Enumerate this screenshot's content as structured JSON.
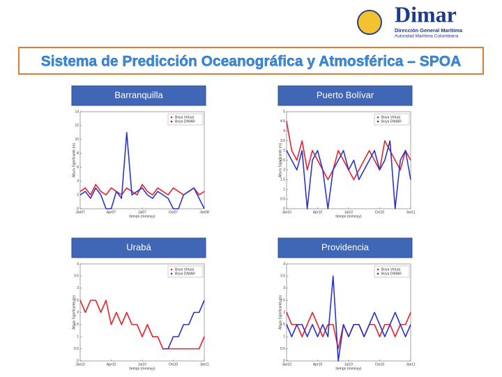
{
  "header": {
    "brand": "Dimar",
    "subtitle1": "Dirección General Marítima",
    "subtitle2": "Autoridad Marítima Colombiana"
  },
  "title": "Sistema de Predicción Oceanográfica y Atmosférica – SPOA",
  "chart_data": [
    {
      "type": "line",
      "title": "Barranquilla",
      "xlabel": "tiempo (mmmyy)",
      "ylabel": "Altura Significante (m)",
      "legend": "upper right",
      "x": [
        0,
        0.5,
        1,
        1.5,
        2,
        2.5,
        3,
        3.5,
        4,
        4.5,
        5,
        5.5,
        6,
        6.5,
        7,
        7.5,
        8,
        8.5,
        9,
        9.5,
        10,
        10.5,
        11,
        11.5,
        12
      ],
      "xlim": [
        0,
        12
      ],
      "xticks": [
        {
          "value": 0,
          "label": "Jan07"
        },
        {
          "value": 3,
          "label": "Apr07"
        },
        {
          "value": 6,
          "label": "Jul07"
        },
        {
          "value": 9,
          "label": "Oct07"
        },
        {
          "value": 12,
          "label": "Jan08"
        }
      ],
      "ylim": [
        0,
        14
      ],
      "yticks": [
        0,
        2,
        4,
        6,
        8,
        10,
        12,
        14
      ],
      "series": [
        {
          "name": "Boya Virtual",
          "color": "#e8212a",
          "values": [
            2.5,
            3,
            2,
            3.5,
            2.5,
            2,
            3,
            2.5,
            2,
            3,
            2.5,
            2,
            3.5,
            2.5,
            2,
            3,
            2.5,
            2,
            3,
            2.5,
            2,
            2.5,
            3,
            2,
            2.5
          ]
        },
        {
          "name": "Boya DIMAR",
          "color": "#2a34c8",
          "values": [
            2,
            2.5,
            1.5,
            3,
            2,
            0,
            0,
            2.5,
            1.5,
            11,
            2,
            2.5,
            3,
            2,
            1.5,
            2.5,
            2,
            1.5,
            0,
            0,
            2,
            2.5,
            3,
            1.5,
            0
          ]
        }
      ]
    },
    {
      "type": "line",
      "title": "Puerto Bolívar",
      "xlabel": "tiempo (mmmyy)",
      "ylabel": "Altura Significante (m)",
      "legend": "upper right",
      "x": [
        0,
        0.5,
        1,
        1.5,
        2,
        2.5,
        3,
        3.5,
        4,
        4.5,
        5,
        5.5,
        6,
        6.5,
        7,
        7.5,
        8,
        8.5,
        9,
        9.5,
        10,
        10.5,
        11,
        11.5,
        12
      ],
      "xlim": [
        0,
        12
      ],
      "xticks": [
        {
          "value": 0,
          "label": "Jan10"
        },
        {
          "value": 3,
          "label": "Apr10"
        },
        {
          "value": 6,
          "label": "Jul10"
        },
        {
          "value": 9,
          "label": "Oct10"
        },
        {
          "value": 12,
          "label": "Jan11"
        }
      ],
      "ylim": [
        0,
        5
      ],
      "yticks": [
        0,
        0.5,
        1,
        1.5,
        2,
        2.5,
        3,
        3.5,
        4,
        4.5,
        5
      ],
      "series": [
        {
          "name": "Boya Virtual",
          "color": "#e8212a",
          "values": [
            4.5,
            3,
            2.5,
            3.5,
            2,
            3,
            2.5,
            2,
            1.5,
            2,
            3,
            2.5,
            2,
            1.5,
            2,
            2.5,
            3,
            2.5,
            2,
            3.5,
            3,
            2.5,
            2,
            3,
            2.5
          ]
        },
        {
          "name": "Boya DIMAR",
          "color": "#2a34c8",
          "values": [
            3,
            2.5,
            2,
            3,
            0,
            2.5,
            3,
            2,
            0,
            2,
            2.5,
            3,
            2,
            2.5,
            1.5,
            2,
            2.5,
            3,
            2,
            2.5,
            3.5,
            0,
            2.5,
            3,
            1.5
          ]
        }
      ]
    },
    {
      "type": "line",
      "title": "Urabá",
      "xlabel": "tiempo (mmmyy)",
      "ylabel": "Altura Significante (m)",
      "legend": "upper right",
      "x": [
        0,
        0.5,
        1,
        1.5,
        2,
        2.5,
        3,
        3.5,
        4,
        4.5,
        5,
        5.5,
        6,
        6.5,
        7,
        7.5,
        8,
        8.5,
        9,
        9.5,
        10,
        10.5,
        11,
        11.5,
        12
      ],
      "xlim": [
        0,
        12
      ],
      "xticks": [
        {
          "value": 0,
          "label": "Jan10"
        },
        {
          "value": 3,
          "label": "Apr10"
        },
        {
          "value": 6,
          "label": "Jul10"
        },
        {
          "value": 9,
          "label": "Oct10"
        },
        {
          "value": 12,
          "label": "Jan11"
        }
      ],
      "ylim": [
        0,
        4
      ],
      "yticks": [
        0,
        0.5,
        1,
        1.5,
        2,
        2.5,
        3,
        3.5,
        4
      ],
      "series": [
        {
          "name": "Boya Virtual",
          "color": "#e8212a",
          "values": [
            2.5,
            2,
            2.5,
            2.5,
            2,
            2.5,
            1.5,
            2,
            1.5,
            2,
            1.5,
            1.5,
            1,
            1.5,
            1,
            1,
            0.5,
            0.5,
            0.5,
            0.5,
            0.5,
            0.5,
            0.5,
            0.5,
            1
          ]
        },
        {
          "name": "Boya DIMAR",
          "color": "#2a34c8",
          "values": [
            null,
            null,
            null,
            null,
            null,
            null,
            null,
            null,
            null,
            null,
            null,
            null,
            null,
            null,
            null,
            null,
            0.5,
            0.5,
            1,
            1,
            1.5,
            1.5,
            2,
            2,
            2.5
          ]
        }
      ]
    },
    {
      "type": "line",
      "title": "Providencia",
      "xlabel": "tiempo (mmmyy)",
      "ylabel": "Altura Significante (m)",
      "legend": "upper right",
      "x": [
        0,
        0.5,
        1,
        1.5,
        2,
        2.5,
        3,
        3.5,
        4,
        4.5,
        5,
        5.5,
        6,
        6.5,
        7,
        7.5,
        8,
        8.5,
        9,
        9.5,
        10,
        10.5,
        11,
        11.5,
        12
      ],
      "xlim": [
        0,
        12
      ],
      "xticks": [
        {
          "value": 0,
          "label": "Jan10"
        },
        {
          "value": 3,
          "label": "Apr10"
        },
        {
          "value": 6,
          "label": "Jul10"
        },
        {
          "value": 9,
          "label": "Oct10"
        },
        {
          "value": 12,
          "label": "Jan11"
        }
      ],
      "ylim": [
        0,
        4
      ],
      "yticks": [
        0,
        0.5,
        1,
        1.5,
        2,
        2.5,
        3,
        3.5,
        4
      ],
      "series": [
        {
          "name": "Boya Virtual",
          "color": "#e8212a",
          "values": [
            2,
            1.5,
            1.5,
            1,
            1.5,
            2,
            1.5,
            1,
            1.5,
            1.5,
            0.5,
            1.5,
            1,
            1.5,
            1.5,
            1,
            1.5,
            1.5,
            1,
            1.5,
            1.5,
            1,
            1.5,
            1.5,
            2
          ]
        },
        {
          "name": "Boya DIMAR",
          "color": "#2a34c8",
          "values": [
            1.5,
            1,
            1.5,
            1.5,
            1,
            1.5,
            1,
            1.5,
            1,
            3.5,
            0,
            1.5,
            1,
            1.5,
            1.5,
            1,
            1.5,
            2,
            1.5,
            1,
            1.5,
            2,
            1.5,
            1,
            1.5
          ]
        }
      ]
    }
  ]
}
